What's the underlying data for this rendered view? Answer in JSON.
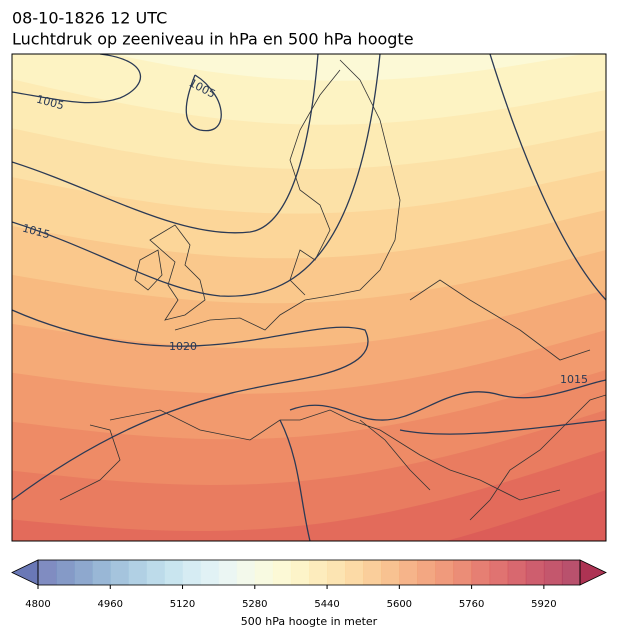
{
  "header": {
    "title": "08-10-1826 12 UTC",
    "subtitle": "Luchtdruk op zeeniveau in hPa en 500 hPa hoogte"
  },
  "contours": [
    {
      "label": "1005"
    },
    {
      "label": "1005"
    },
    {
      "label": "1015"
    },
    {
      "label": "1020"
    },
    {
      "label": "1015"
    }
  ],
  "colorbar": {
    "label": "500 hPa hoogte in meter",
    "lim": [
      4800,
      6000
    ],
    "ticks": [
      4800,
      4960,
      5120,
      5280,
      5440,
      5600,
      5760,
      5920
    ],
    "colors": [
      "#6a78b6",
      "#7088bd",
      "#7a99c5",
      "#87aacf",
      "#95bad7",
      "#a3c8df",
      "#b1d5e6",
      "#c0e0ec",
      "#cfe9f1",
      "#dcf0f3",
      "#e8f5f1",
      "#f1f8e8",
      "#f7f9dc",
      "#fbf8cf",
      "#fdf2c0",
      "#fde9b2",
      "#fcdfa4",
      "#fbd397",
      "#f9c58a",
      "#f7b77e",
      "#f4a775",
      "#f1986c",
      "#ed8865",
      "#e8795f",
      "#e2695b",
      "#da5b58",
      "#d14d56",
      "#c64255",
      "#ba3954",
      "#ad3353"
    ]
  }
}
